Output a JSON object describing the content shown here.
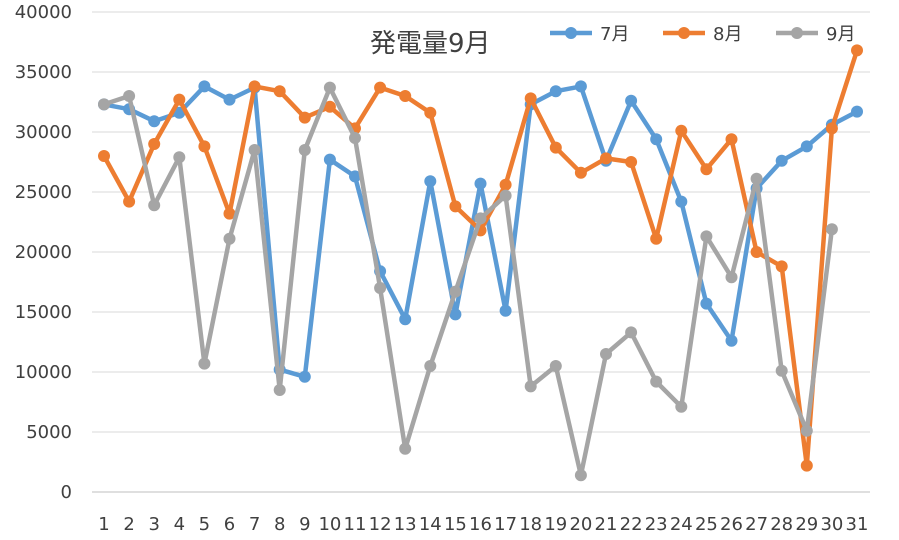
{
  "chart_data": {
    "type": "line",
    "title": "発電量9月",
    "xlabel": "",
    "ylabel": "",
    "x": [
      1,
      2,
      3,
      4,
      5,
      6,
      7,
      8,
      9,
      10,
      11,
      12,
      13,
      14,
      15,
      16,
      17,
      18,
      19,
      20,
      21,
      22,
      23,
      24,
      25,
      26,
      27,
      28,
      29,
      30,
      31
    ],
    "ylim": [
      0,
      40000
    ],
    "yticks": [
      0,
      5000,
      10000,
      15000,
      20000,
      25000,
      30000,
      35000,
      40000
    ],
    "grid": true,
    "legend_position": "top-right",
    "series": [
      {
        "name": "7月",
        "color": "#5B9BD5",
        "values": [
          32300,
          31900,
          30900,
          31600,
          33800,
          32700,
          33700,
          10200,
          9600,
          27700,
          26300,
          18400,
          14400,
          25900,
          14800,
          25700,
          15100,
          32300,
          33400,
          33800,
          27600,
          32600,
          29400,
          24200,
          15700,
          12600,
          25300,
          27600,
          28800,
          30600,
          31700
        ]
      },
      {
        "name": "8月",
        "color": "#ED7D31",
        "values": [
          28000,
          24200,
          29000,
          32700,
          28800,
          23200,
          33800,
          33400,
          31200,
          32100,
          30300,
          33700,
          33000,
          31600,
          23800,
          21800,
          25600,
          32800,
          28700,
          26600,
          27800,
          27500,
          21100,
          30100,
          26900,
          29400,
          20000,
          18800,
          2200,
          30300,
          36800
        ]
      },
      {
        "name": "9月",
        "color": "#A5A5A5",
        "values": [
          32300,
          33000,
          23900,
          27900,
          10700,
          21100,
          28500,
          8500,
          28500,
          33700,
          29500,
          17000,
          3600,
          10500,
          16700,
          22800,
          24700,
          8800,
          10500,
          1400,
          11500,
          13300,
          9200,
          7100,
          21300,
          17900,
          26100,
          10100,
          5100,
          21900,
          null
        ]
      }
    ]
  }
}
